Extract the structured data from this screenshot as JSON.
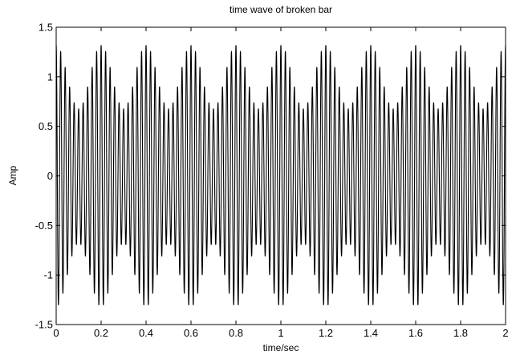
{
  "chart_data": {
    "type": "line",
    "title": "time wave of broken bar",
    "xlabel": "time/sec",
    "ylabel": "Amp",
    "xlim": [
      0,
      2
    ],
    "ylim": [
      -1.5,
      1.5
    ],
    "x_ticks": [
      "0",
      "0.2",
      "0.4",
      "0.6",
      "0.8",
      "1",
      "1.2",
      "1.4",
      "1.6",
      "1.8",
      "2"
    ],
    "y_ticks": [
      "-1.5",
      "-1",
      "-0.5",
      "0",
      "0.5",
      "1",
      "1.5"
    ],
    "grid": false,
    "series": [
      {
        "color": "#000000",
        "sample_rate_hz": 2000,
        "components": [
          {
            "amplitude": 1.0,
            "frequency_hz": 50
          },
          {
            "amplitude": 0.16,
            "frequency_hz": 45
          },
          {
            "amplitude": 0.16,
            "frequency_hz": 55
          }
        ]
      }
    ]
  }
}
